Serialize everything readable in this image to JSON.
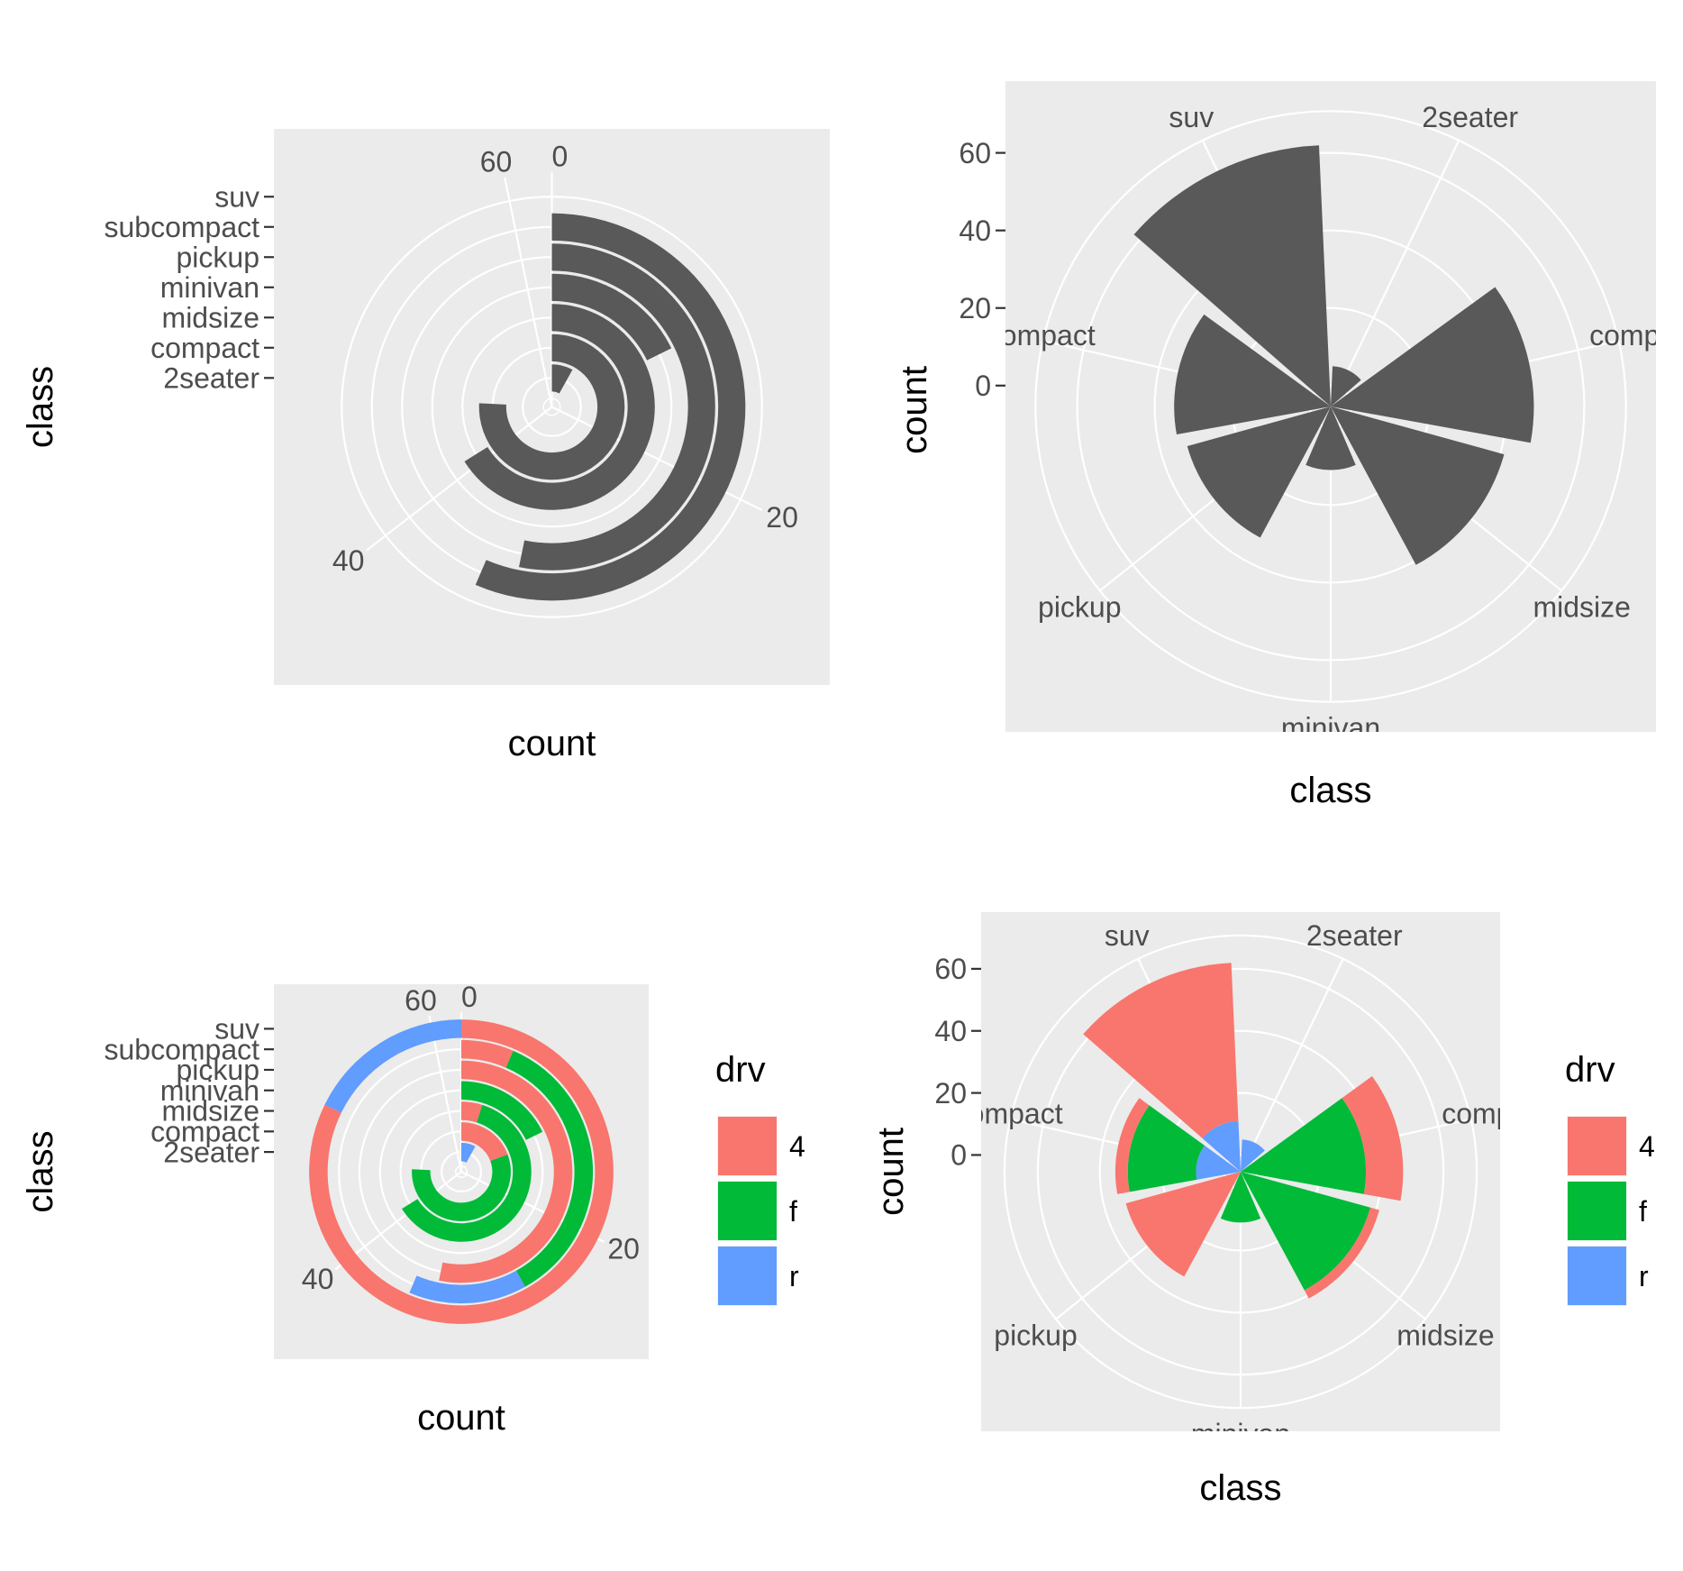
{
  "chart_data": [
    {
      "id": "p1",
      "type": "bar",
      "transform": "coord_polar(theta = y)",
      "xlabel": "count",
      "ylabel": "class",
      "categories": [
        "2seater",
        "compact",
        "midsize",
        "minivan",
        "pickup",
        "subcompact",
        "suv"
      ],
      "values": [
        5,
        47,
        41,
        11,
        33,
        35,
        62
      ],
      "theta_ticks": [
        "0",
        "20",
        "40",
        "60"
      ],
      "theta_tick_values": [
        0,
        20,
        40,
        60
      ],
      "fill": "#595959",
      "panel_bg": "#ebebeb",
      "grid": true,
      "legend": "none"
    },
    {
      "id": "p2",
      "type": "bar",
      "transform": "coord_polar(theta = x)",
      "xlabel": "class",
      "ylabel": "count",
      "categories": [
        "2seater",
        "compact",
        "midsize",
        "minivan",
        "pickup",
        "subcompact",
        "suv"
      ],
      "values": [
        5,
        47,
        41,
        11,
        33,
        35,
        62
      ],
      "r_ticks": [
        "0",
        "20",
        "40",
        "60"
      ],
      "r_tick_values": [
        0,
        20,
        40,
        60
      ],
      "fill": "#595959",
      "panel_bg": "#ebebeb",
      "grid": true,
      "legend": "none"
    },
    {
      "id": "p3",
      "type": "bar",
      "transform": "coord_polar(theta = y)",
      "stacked": true,
      "xlabel": "count",
      "ylabel": "class",
      "categories": [
        "2seater",
        "compact",
        "midsize",
        "minivan",
        "pickup",
        "subcompact",
        "suv"
      ],
      "series": [
        {
          "name": "4",
          "color": "#F8766D",
          "values": [
            0,
            12,
            3,
            0,
            33,
            4,
            51
          ]
        },
        {
          "name": "f",
          "color": "#00BA38",
          "values": [
            0,
            35,
            38,
            11,
            0,
            22,
            0
          ]
        },
        {
          "name": "r",
          "color": "#619CFF",
          "values": [
            5,
            0,
            0,
            0,
            0,
            9,
            11
          ]
        }
      ],
      "theta_ticks": [
        "0",
        "20",
        "40",
        "60"
      ],
      "theta_tick_values": [
        0,
        20,
        40,
        60
      ],
      "legend_title": "drv",
      "legend": "right",
      "panel_bg": "#ebebeb",
      "grid": true
    },
    {
      "id": "p4",
      "type": "bar",
      "transform": "coord_polar(theta = x)",
      "stacked": true,
      "xlabel": "class",
      "ylabel": "count",
      "categories": [
        "2seater",
        "compact",
        "midsize",
        "minivan",
        "pickup",
        "subcompact",
        "suv"
      ],
      "series": [
        {
          "name": "4",
          "color": "#F8766D",
          "values": [
            0,
            12,
            3,
            0,
            33,
            4,
            51
          ]
        },
        {
          "name": "f",
          "color": "#00BA38",
          "values": [
            0,
            35,
            38,
            11,
            0,
            22,
            0
          ]
        },
        {
          "name": "r",
          "color": "#619CFF",
          "values": [
            5,
            0,
            0,
            0,
            0,
            9,
            11
          ]
        }
      ],
      "r_ticks": [
        "0",
        "20",
        "40",
        "60"
      ],
      "r_tick_values": [
        0,
        20,
        40,
        60
      ],
      "legend_title": "drv",
      "legend": "right",
      "panel_bg": "#ebebeb",
      "grid": true
    }
  ]
}
